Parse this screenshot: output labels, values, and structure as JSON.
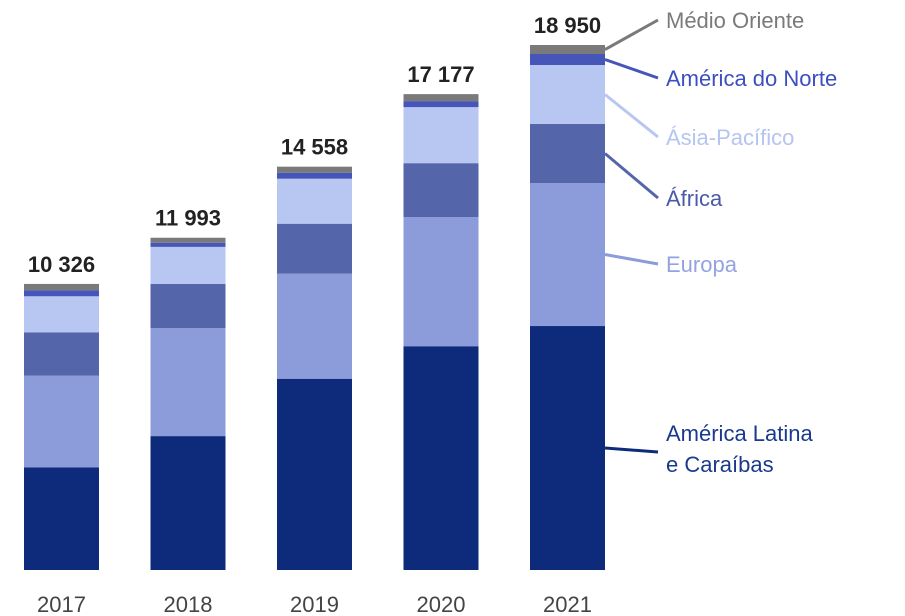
{
  "chart_data": {
    "type": "stacked-bar",
    "categories": [
      "2017",
      "2018",
      "2019",
      "2020",
      "2021"
    ],
    "series": [
      {
        "name": "América Latina e Caraíbas",
        "color": "#0d2b7a",
        "label_color": "#1a3a8f",
        "values": [
          3700,
          4833,
          6904,
          8078,
          8806
        ]
      },
      {
        "name": "Europa",
        "color": "#8c9bd9",
        "label_color": "#94a3e0",
        "values": [
          3320,
          3900,
          3790,
          4657,
          5162
        ]
      },
      {
        "name": "África",
        "color": "#5565aa",
        "label_color": "#4a5aa8",
        "values": [
          1560,
          1590,
          1805,
          1950,
          2130
        ]
      },
      {
        "name": "Ásia-Pacífico",
        "color": "#b8c6f2",
        "label_color": "#b5c4f0",
        "values": [
          1300,
          1340,
          1625,
          2022,
          2130
        ]
      },
      {
        "name": "América do Norte",
        "color": "#4656b8",
        "label_color": "#3d4fc0",
        "values": [
          220,
          150,
          217,
          217,
          397
        ]
      },
      {
        "name": "Médio Oriente",
        "color": "#7a7a7a",
        "label_color": "#7a7a7a",
        "values": [
          226,
          180,
          217,
          253,
          325
        ]
      }
    ],
    "totals": {
      "values": [
        10326,
        11993,
        14558,
        17177,
        18950
      ],
      "value_labels": [
        "10 326",
        "11 993",
        "14 558",
        "17 177",
        "18 950"
      ]
    },
    "ylim": [
      0,
      18950
    ]
  }
}
